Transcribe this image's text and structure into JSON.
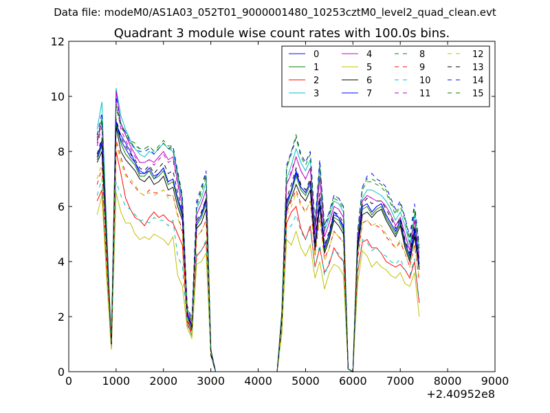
{
  "supertitle": "Data file: modeM0/AS1A03_052T01_9000001480_10253cztM0_level2_quad_clean.evt",
  "chart_data": {
    "type": "line",
    "title": "Quadrant 3 module wise count rates with 100.0s bins.",
    "xlabel": "",
    "ylabel": "",
    "x_offset_label": "+2.40952e8",
    "xlim": [
      0,
      9000
    ],
    "ylim": [
      0,
      12
    ],
    "xticks": [
      0,
      1000,
      2000,
      3000,
      4000,
      5000,
      6000,
      7000,
      8000,
      9000
    ],
    "yticks": [
      0,
      2,
      4,
      6,
      8,
      10,
      12
    ],
    "legend_position": "top-right",
    "legend_columns": 4,
    "series": [
      {
        "name": "0",
        "color": "#0000ff",
        "dash": "solid",
        "base": [
          7.7,
          8.3,
          4.8,
          1.0,
          9.0,
          8.6,
          8.3,
          8.0,
          7.6,
          7.3,
          7.2,
          7.3,
          7.0,
          7.2,
          7.4,
          6.9,
          7.0,
          6.3,
          5.8,
          2.1,
          1.7,
          5.4,
          5.7,
          6.3,
          0.7,
          0.0,
          0,
          0,
          0,
          0,
          0,
          0,
          0,
          0,
          0,
          0,
          0,
          0,
          0,
          1.9,
          6.2,
          6.6,
          7.3,
          6.7,
          6.5,
          6.9,
          4.6,
          6.3,
          4.5,
          5.0,
          5.8,
          5.6,
          5.3,
          0.1,
          0.0,
          4.6,
          6.0,
          6.1,
          5.8,
          6.0,
          6.1,
          5.7,
          5.4,
          5.1,
          5.5,
          4.7,
          4.2,
          5.2,
          3.9
        ]
      },
      {
        "name": "1",
        "color": "#008000",
        "dash": "solid",
        "base": [
          7.7,
          8.2,
          4.6,
          0.9,
          9.0,
          8.3,
          7.9,
          7.7,
          7.5,
          7.1,
          7.1,
          7.3,
          7.0,
          7.1,
          7.3,
          6.8,
          6.9,
          6.2,
          5.6,
          2.0,
          1.6,
          5.3,
          5.6,
          6.1,
          0.7,
          0.0,
          0,
          0,
          0,
          0,
          0,
          0,
          0,
          0,
          0,
          0,
          0,
          0,
          0,
          1.9,
          6.0,
          6.5,
          7.1,
          6.6,
          6.4,
          6.8,
          4.5,
          6.2,
          4.4,
          4.9,
          5.6,
          5.5,
          5.1,
          0.1,
          0.0,
          4.5,
          5.9,
          6.0,
          5.7,
          5.9,
          6.0,
          5.6,
          5.3,
          5.0,
          5.4,
          4.6,
          4.1,
          5.0,
          3.8
        ]
      },
      {
        "name": "2",
        "color": "#ff0000",
        "dash": "solid",
        "base": [
          6.2,
          6.6,
          3.8,
          0.8,
          8.0,
          7.2,
          6.3,
          5.9,
          5.6,
          5.5,
          5.3,
          5.6,
          5.8,
          5.6,
          5.7,
          5.5,
          5.4,
          5.0,
          4.6,
          1.8,
          1.3,
          4.2,
          4.4,
          4.7,
          0.6,
          0.0,
          0,
          0,
          0,
          0,
          0,
          0,
          0,
          0,
          0,
          0,
          0,
          0,
          0,
          1.5,
          5.4,
          5.8,
          6.0,
          5.2,
          4.8,
          5.3,
          3.8,
          4.5,
          3.6,
          3.9,
          4.5,
          4.2,
          4.0,
          0.1,
          0.0,
          3.6,
          4.7,
          4.8,
          4.5,
          4.5,
          4.3,
          4.0,
          3.9,
          3.8,
          3.9,
          3.7,
          3.4,
          4.0,
          2.5
        ]
      },
      {
        "name": "3",
        "color": "#00bfbf",
        "dash": "solid",
        "base": [
          8.8,
          9.8,
          5.2,
          1.0,
          10.3,
          9.3,
          8.8,
          8.4,
          8.1,
          7.9,
          7.8,
          8.0,
          7.9,
          8.1,
          8.3,
          8.1,
          8.0,
          7.1,
          6.2,
          2.3,
          1.8,
          5.9,
          6.3,
          6.9,
          0.8,
          0.0,
          0,
          0,
          0,
          0,
          0,
          0,
          0,
          0,
          0,
          0,
          0,
          0,
          0,
          2.1,
          7.0,
          7.5,
          8.1,
          7.6,
          7.3,
          7.7,
          5.2,
          7.5,
          5.1,
          5.6,
          6.2,
          6.1,
          5.8,
          0.1,
          0.0,
          4.9,
          6.3,
          6.6,
          6.6,
          6.5,
          6.4,
          6.2,
          5.9,
          5.5,
          5.8,
          5.3,
          4.6,
          5.7,
          4.3
        ]
      },
      {
        "name": "4",
        "color": "#bf00bf",
        "dash": "solid",
        "base": [
          8.3,
          9.1,
          5.0,
          1.0,
          10.2,
          9.0,
          8.6,
          8.2,
          7.9,
          7.6,
          7.6,
          7.7,
          7.6,
          7.8,
          8.0,
          7.7,
          7.8,
          6.9,
          6.0,
          2.2,
          1.7,
          5.7,
          6.1,
          6.6,
          0.8,
          0.0,
          0,
          0,
          0,
          0,
          0,
          0,
          0,
          0,
          0,
          0,
          0,
          0,
          0,
          2.0,
          6.8,
          7.2,
          7.8,
          7.3,
          7.0,
          7.4,
          5.0,
          7.1,
          4.9,
          5.4,
          6.0,
          5.9,
          5.6,
          0.1,
          0.0,
          4.8,
          6.2,
          6.4,
          6.3,
          6.2,
          6.2,
          6.0,
          5.7,
          5.3,
          5.6,
          5.0,
          4.4,
          5.5,
          4.1
        ]
      },
      {
        "name": "5",
        "color": "#bfbf00",
        "dash": "solid",
        "base": [
          5.7,
          6.4,
          3.4,
          0.8,
          6.5,
          5.8,
          5.4,
          5.4,
          5.0,
          4.8,
          4.9,
          4.8,
          5.0,
          4.9,
          4.8,
          4.6,
          4.9,
          3.5,
          3.1,
          1.6,
          1.2,
          3.9,
          4.0,
          4.3,
          0.6,
          0.0,
          0,
          0,
          0,
          0,
          0,
          0,
          0,
          0,
          0,
          0,
          0,
          0,
          0,
          1.4,
          4.8,
          4.6,
          5.1,
          4.5,
          4.2,
          4.6,
          3.4,
          4.0,
          3.0,
          3.6,
          3.9,
          3.8,
          3.5,
          0.1,
          0.0,
          3.2,
          4.4,
          4.2,
          3.8,
          4.0,
          3.8,
          3.7,
          3.5,
          3.4,
          3.6,
          3.2,
          3.1,
          3.6,
          2.0
        ]
      },
      {
        "name": "6",
        "color": "#000000",
        "dash": "solid",
        "base": [
          7.6,
          8.0,
          4.5,
          0.9,
          8.9,
          8.0,
          7.7,
          7.5,
          7.3,
          7.0,
          6.9,
          7.1,
          6.8,
          6.9,
          7.1,
          6.6,
          6.7,
          6.0,
          5.5,
          1.9,
          1.5,
          5.2,
          5.4,
          5.9,
          0.6,
          0.0,
          0,
          0,
          0,
          0,
          0,
          0,
          0,
          0,
          0,
          0,
          0,
          0,
          0,
          1.8,
          5.9,
          6.3,
          6.8,
          6.4,
          6.2,
          6.6,
          4.4,
          6.0,
          4.3,
          4.8,
          5.5,
          5.3,
          5.0,
          0.1,
          0.0,
          4.4,
          5.7,
          5.8,
          5.6,
          5.8,
          5.9,
          5.5,
          5.2,
          4.9,
          5.3,
          4.5,
          4.0,
          4.9,
          3.7
        ]
      },
      {
        "name": "7",
        "color": "#0000ff",
        "dash": "solid",
        "base": [
          7.8,
          8.4,
          4.7,
          1.0,
          9.1,
          8.4,
          8.1,
          7.8,
          7.6,
          7.2,
          7.2,
          7.4,
          7.1,
          7.2,
          7.4,
          6.9,
          7.0,
          6.3,
          5.7,
          2.1,
          1.6,
          5.4,
          5.7,
          6.2,
          0.7,
          0.0,
          0,
          0,
          0,
          0,
          0,
          0,
          0,
          0,
          0,
          0,
          0,
          0,
          0,
          1.9,
          6.1,
          6.6,
          7.2,
          6.7,
          6.5,
          6.9,
          4.6,
          6.3,
          4.5,
          5.0,
          5.7,
          5.6,
          5.2,
          0.1,
          0.0,
          4.6,
          6.0,
          6.1,
          5.8,
          6.0,
          6.1,
          5.7,
          5.4,
          5.1,
          5.5,
          4.7,
          4.2,
          5.1,
          3.9
        ]
      },
      {
        "name": "8",
        "color": "#008000",
        "dash": "dashed",
        "base": [
          8.4,
          9.2,
          5.0,
          1.0,
          9.7,
          9.0,
          8.7,
          8.4,
          8.3,
          8.1,
          8.1,
          8.2,
          8.0,
          8.2,
          8.4,
          8.2,
          8.2,
          7.3,
          6.4,
          2.4,
          1.9,
          6.1,
          6.6,
          7.2,
          0.8,
          0.0,
          0,
          0,
          0,
          0,
          0,
          0,
          0,
          0,
          0,
          0,
          0,
          0,
          0,
          2.2,
          7.4,
          8.0,
          8.6,
          7.9,
          7.6,
          8.0,
          5.4,
          7.6,
          5.3,
          5.8,
          6.4,
          6.3,
          6.0,
          0.1,
          0.0,
          5.1,
          6.7,
          7.0,
          7.0,
          6.9,
          6.8,
          6.6,
          6.2,
          5.8,
          6.1,
          5.6,
          4.8,
          5.9,
          4.5
        ]
      },
      {
        "name": "9",
        "color": "#ff0000",
        "dash": "dashed",
        "base": [
          6.8,
          7.4,
          4.1,
          0.9,
          8.4,
          7.8,
          7.2,
          6.9,
          6.7,
          6.5,
          6.4,
          6.6,
          6.5,
          6.5,
          6.6,
          6.4,
          6.4,
          5.7,
          5.1,
          1.9,
          1.4,
          4.9,
          5.1,
          5.5,
          0.7,
          0.0,
          0,
          0,
          0,
          0,
          0,
          0,
          0,
          0,
          0,
          0,
          0,
          0,
          0,
          1.7,
          5.8,
          6.2,
          6.6,
          6.1,
          5.8,
          6.2,
          4.2,
          5.6,
          4.1,
          4.5,
          5.1,
          4.9,
          4.7,
          0.1,
          0.0,
          4.1,
          5.4,
          5.5,
          5.3,
          5.3,
          5.2,
          4.9,
          4.7,
          4.5,
          4.7,
          4.3,
          3.8,
          4.6,
          3.3
        ]
      },
      {
        "name": "10",
        "color": "#00bfbf",
        "dash": "dashed",
        "base": [
          6.4,
          7.0,
          3.9,
          0.9,
          6.9,
          6.4,
          6.0,
          5.9,
          5.7,
          5.5,
          5.5,
          5.4,
          5.6,
          5.5,
          5.5,
          5.3,
          5.5,
          4.2,
          3.8,
          1.7,
          1.3,
          4.3,
          4.4,
          4.8,
          0.6,
          0.0,
          0,
          0,
          0,
          0,
          0,
          0,
          0,
          0,
          0,
          0,
          0,
          0,
          0,
          1.6,
          5.2,
          5.3,
          5.7,
          5.1,
          4.8,
          5.2,
          3.8,
          4.6,
          3.5,
          4.0,
          4.4,
          4.3,
          4.0,
          0.1,
          0.0,
          3.6,
          4.8,
          4.7,
          4.4,
          4.5,
          4.3,
          4.2,
          4.0,
          3.9,
          4.1,
          3.7,
          3.5,
          4.1,
          2.6
        ]
      },
      {
        "name": "11",
        "color": "#bf00bf",
        "dash": "dashed",
        "base": [
          8.2,
          8.9,
          4.9,
          1.0,
          9.8,
          8.8,
          8.4,
          8.1,
          7.8,
          7.6,
          7.6,
          7.7,
          7.5,
          7.7,
          7.9,
          7.6,
          7.7,
          6.8,
          6.0,
          2.2,
          1.7,
          5.7,
          6.1,
          6.6,
          0.8,
          0.0,
          0,
          0,
          0,
          0,
          0,
          0,
          0,
          0,
          0,
          0,
          0,
          0,
          0,
          2.0,
          6.8,
          7.3,
          7.8,
          7.3,
          7.0,
          7.4,
          5.0,
          7.0,
          4.9,
          5.4,
          6.0,
          5.9,
          5.6,
          0.1,
          0.0,
          4.8,
          6.2,
          6.4,
          6.3,
          6.2,
          6.2,
          6.0,
          5.7,
          5.3,
          5.6,
          5.0,
          4.4,
          5.5,
          4.1
        ]
      },
      {
        "name": "12",
        "color": "#bfbf00",
        "dash": "dashed",
        "base": [
          7.0,
          7.6,
          4.2,
          0.9,
          8.3,
          7.6,
          7.1,
          7.0,
          6.8,
          6.5,
          6.4,
          6.5,
          6.4,
          6.5,
          6.6,
          6.3,
          6.4,
          5.6,
          5.0,
          1.9,
          1.4,
          4.9,
          5.1,
          5.5,
          0.7,
          0.0,
          0,
          0,
          0,
          0,
          0,
          0,
          0,
          0,
          0,
          0,
          0,
          0,
          0,
          1.7,
          5.7,
          6.0,
          6.5,
          6.0,
          5.8,
          6.2,
          4.2,
          5.6,
          4.0,
          4.5,
          5.1,
          4.9,
          4.7,
          0.1,
          0.0,
          4.1,
          5.4,
          5.5,
          5.3,
          5.4,
          5.3,
          5.0,
          4.8,
          4.5,
          4.8,
          4.3,
          3.8,
          4.6,
          3.4
        ]
      },
      {
        "name": "13",
        "color": "#000000",
        "dash": "dashed",
        "base": [
          7.9,
          8.5,
          4.7,
          1.0,
          9.2,
          8.5,
          8.2,
          7.9,
          7.7,
          7.4,
          7.3,
          7.5,
          7.2,
          7.4,
          7.6,
          7.2,
          7.3,
          6.5,
          5.9,
          2.1,
          1.6,
          5.5,
          5.8,
          6.3,
          0.7,
          0.0,
          0,
          0,
          0,
          0,
          0,
          0,
          0,
          0,
          0,
          0,
          0,
          0,
          0,
          1.9,
          6.3,
          6.8,
          7.4,
          6.8,
          6.6,
          7.0,
          4.7,
          6.5,
          4.6,
          5.1,
          5.8,
          5.7,
          5.4,
          0.1,
          0.0,
          4.7,
          6.1,
          6.3,
          6.1,
          6.2,
          6.2,
          5.9,
          5.6,
          5.2,
          5.6,
          4.8,
          4.3,
          5.3,
          4.0
        ]
      },
      {
        "name": "14",
        "color": "#0000ff",
        "dash": "dashed",
        "base": [
          8.6,
          9.4,
          5.1,
          1.0,
          10.0,
          9.0,
          8.7,
          8.3,
          8.1,
          8.0,
          8.0,
          8.1,
          7.9,
          8.1,
          8.3,
          8.1,
          8.2,
          7.2,
          6.3,
          2.4,
          1.9,
          6.2,
          6.7,
          7.3,
          0.8,
          0.0,
          0,
          0,
          0,
          0,
          0,
          0,
          0,
          0,
          0,
          0,
          0,
          0,
          0,
          2.2,
          7.5,
          8.0,
          8.5,
          7.9,
          7.6,
          8.0,
          5.4,
          7.7,
          5.3,
          5.8,
          6.4,
          6.3,
          6.0,
          0.1,
          0.0,
          5.1,
          6.7,
          7.1,
          7.2,
          7.0,
          6.9,
          6.7,
          6.3,
          5.9,
          6.2,
          5.6,
          4.9,
          6.1,
          4.6
        ]
      },
      {
        "name": "15",
        "color": "#008000",
        "dash": "dashed",
        "base": [
          8.5,
          9.2,
          5.0,
          1.0,
          9.6,
          8.9,
          8.6,
          8.3,
          8.2,
          8.1,
          8.1,
          8.2,
          8.0,
          8.1,
          8.3,
          8.1,
          8.1,
          7.2,
          6.3,
          2.3,
          1.8,
          6.0,
          6.5,
          7.1,
          0.8,
          0.0,
          0,
          0,
          0,
          0,
          0,
          0,
          0,
          0,
          0,
          0,
          0,
          0,
          0,
          2.2,
          7.4,
          7.9,
          8.5,
          7.8,
          7.5,
          7.9,
          5.3,
          7.5,
          5.2,
          5.7,
          6.3,
          6.2,
          5.9,
          0.1,
          0.0,
          5.0,
          6.6,
          6.9,
          6.9,
          6.8,
          6.7,
          6.5,
          6.1,
          5.7,
          6.0,
          5.5,
          4.7,
          5.8,
          4.4
        ]
      }
    ]
  }
}
